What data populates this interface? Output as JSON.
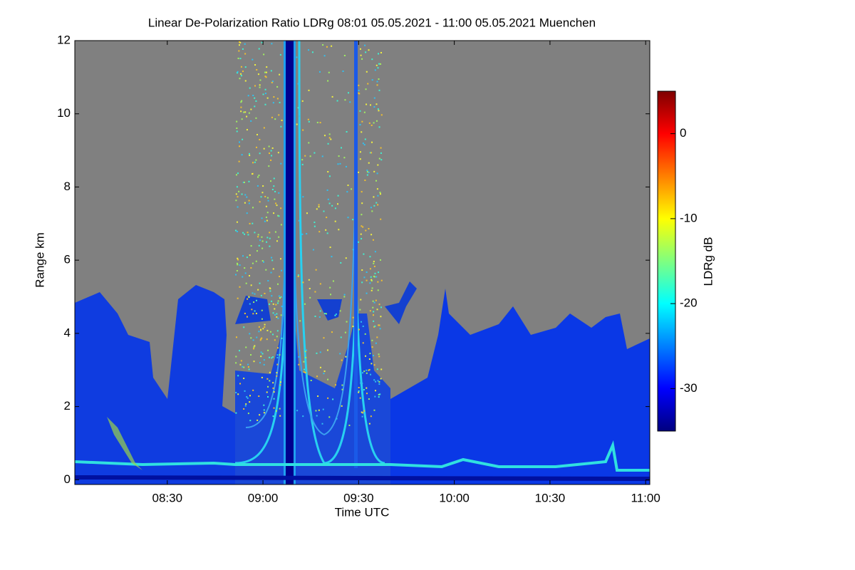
{
  "chart_data": {
    "type": "heatmap",
    "title": "Linear De-Polarization Ratio LDRg   08:01 05.05.2021 - 11:00 05.05.2021 Muenchen",
    "x_label": "Time UTC",
    "y_label": "Range km",
    "colorbar_label": "LDRg dB",
    "xlim": [
      481,
      661.3
    ],
    "xticks": [
      {
        "value": 510,
        "label": "08:30"
      },
      {
        "value": 540,
        "label": "09:00"
      },
      {
        "value": 570,
        "label": "09:30"
      },
      {
        "value": 600,
        "label": "10:00"
      },
      {
        "value": 630,
        "label": "10:30"
      },
      {
        "value": 660,
        "label": "11:00"
      }
    ],
    "ylim": [
      -0.13,
      12
    ],
    "yticks": [
      0,
      2,
      4,
      6,
      8,
      10,
      12
    ],
    "clim": [
      -35,
      5
    ],
    "cticks": [
      0,
      -10,
      -20,
      -30
    ],
    "colormap": "jet"
  }
}
